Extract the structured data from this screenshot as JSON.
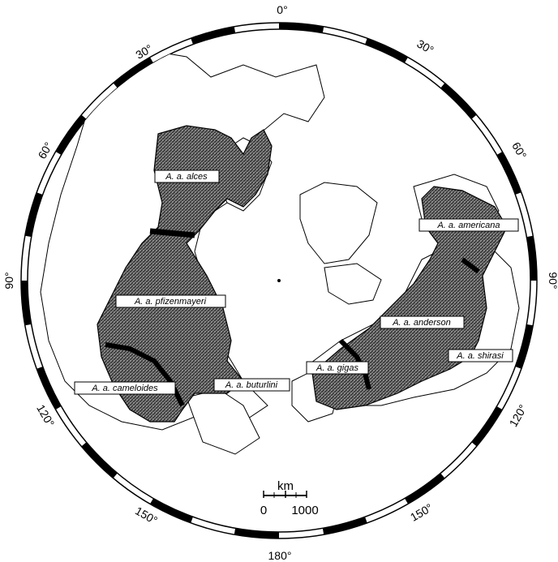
{
  "map": {
    "projection": "polar",
    "degree_labels": [
      "0°",
      "30°",
      "30°",
      "60°",
      "60°",
      "90°",
      "90°",
      "120°",
      "120°",
      "150°",
      "150°",
      "180°"
    ],
    "subspecies": [
      "A. a. alces",
      "A. a. pfizenmayeri",
      "A. a. cameloides",
      "A. a. buturlini",
      "A. a. gigas",
      "A. a. anderson",
      "A. a. americana",
      "A. a. shirasi"
    ],
    "scale_bar": {
      "unit": "km",
      "min_label": "0",
      "max_label": "1000"
    }
  }
}
